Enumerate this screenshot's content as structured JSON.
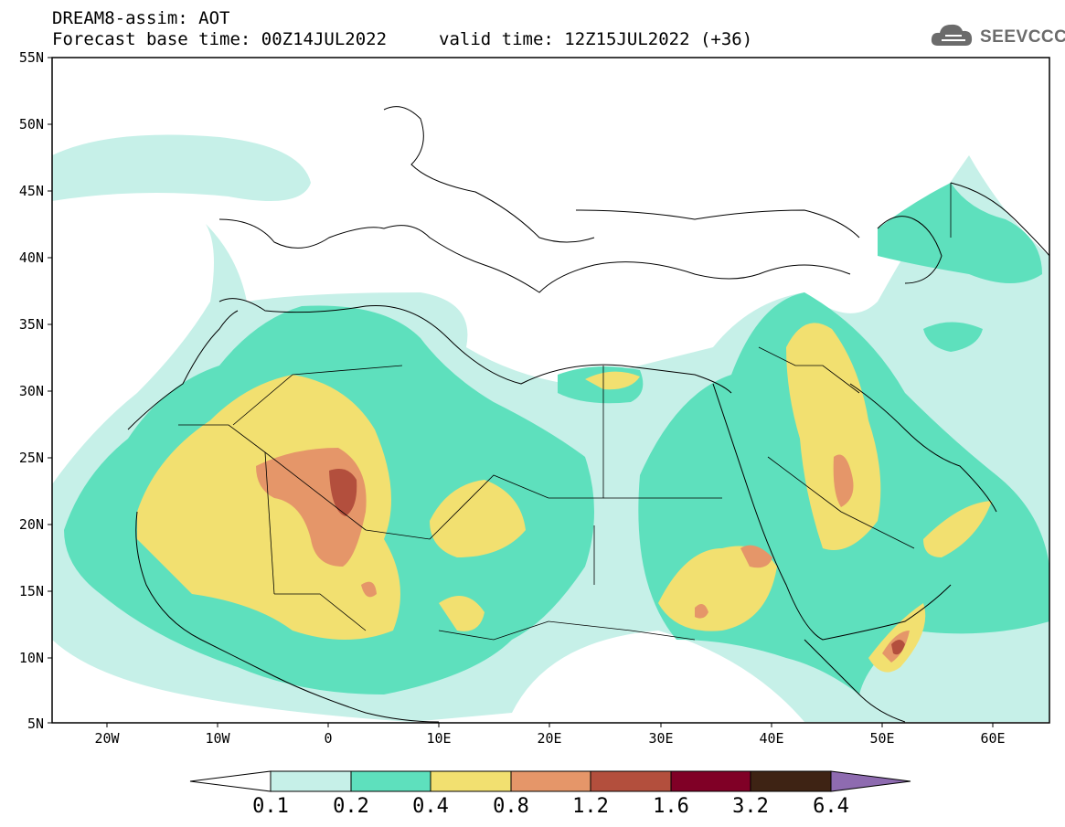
{
  "header": {
    "title": "DREAM8-assim: AOT",
    "base_time": "Forecast base time: 00Z14JUL2022",
    "valid_time": "valid time: 12Z15JUL2022 (+36)"
  },
  "logo": {
    "text": "SEEVCCC",
    "icon": "cloud-icon"
  },
  "map": {
    "lat_labels": [
      "55N",
      "50N",
      "45N",
      "40N",
      "35N",
      "30N",
      "25N",
      "20N",
      "15N",
      "10N",
      "5N"
    ],
    "lon_labels": [
      "20W",
      "10W",
      "0",
      "10E",
      "20E",
      "30E",
      "40E",
      "50E",
      "60E"
    ],
    "colors": {
      "c1": "#c6f0e8",
      "c2": "#5ee0bd",
      "c3": "#f2e070",
      "c4": "#e59669",
      "c5": "#b34f3d",
      "c6": "#800026",
      "c7": "#3e2314",
      "c8": "#8e6bb0"
    }
  },
  "colorbar": {
    "labels": [
      "0.1",
      "0.2",
      "0.4",
      "0.8",
      "1.2",
      "1.6",
      "3.2",
      "6.4"
    ]
  }
}
